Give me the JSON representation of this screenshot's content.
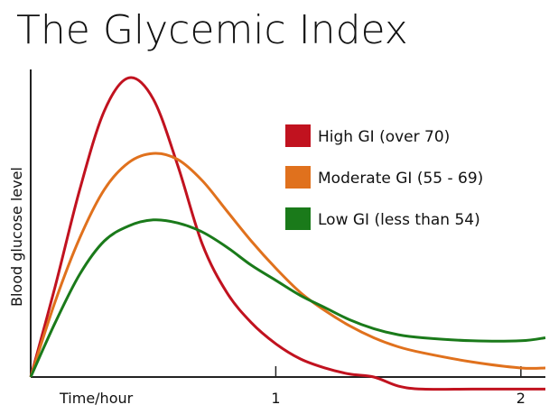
{
  "chart_data": {
    "type": "line",
    "title": "The Glycemic Index",
    "xlabel": "Time/hour",
    "ylabel": "Blood glucose level",
    "x_ticks": [
      1,
      2
    ],
    "xlim": [
      0,
      2.1
    ],
    "ylim": [
      0,
      100
    ],
    "legend_position": "top-right",
    "series": [
      {
        "name": "High GI (over 70)",
        "color": "#c1121f",
        "points": [
          [
            0,
            0
          ],
          [
            0.1,
            30
          ],
          [
            0.2,
            62
          ],
          [
            0.3,
            88
          ],
          [
            0.4,
            99
          ],
          [
            0.5,
            92
          ],
          [
            0.6,
            70
          ],
          [
            0.7,
            44
          ],
          [
            0.8,
            28
          ],
          [
            0.9,
            18
          ],
          [
            1.0,
            11
          ],
          [
            1.1,
            6
          ],
          [
            1.2,
            3
          ],
          [
            1.3,
            1
          ],
          [
            1.4,
            0
          ],
          [
            1.5,
            -3
          ],
          [
            1.6,
            -4
          ],
          [
            1.8,
            -4
          ],
          [
            2.0,
            -4
          ],
          [
            2.1,
            -4
          ]
        ]
      },
      {
        "name": "Moderate GI (55 - 69)",
        "color": "#e0711d",
        "points": [
          [
            0,
            0
          ],
          [
            0.1,
            25
          ],
          [
            0.2,
            46
          ],
          [
            0.3,
            62
          ],
          [
            0.4,
            71
          ],
          [
            0.5,
            74
          ],
          [
            0.6,
            72
          ],
          [
            0.7,
            65
          ],
          [
            0.8,
            55
          ],
          [
            0.9,
            45
          ],
          [
            1.0,
            36
          ],
          [
            1.1,
            28
          ],
          [
            1.2,
            22
          ],
          [
            1.3,
            17
          ],
          [
            1.4,
            13
          ],
          [
            1.5,
            10
          ],
          [
            1.6,
            8
          ],
          [
            1.8,
            5
          ],
          [
            2.0,
            3
          ],
          [
            2.1,
            3
          ]
        ]
      },
      {
        "name": "Low GI (less than 54)",
        "color": "#1a7a1a",
        "points": [
          [
            0,
            0
          ],
          [
            0.1,
            18
          ],
          [
            0.2,
            34
          ],
          [
            0.3,
            45
          ],
          [
            0.4,
            50
          ],
          [
            0.5,
            52
          ],
          [
            0.6,
            51
          ],
          [
            0.7,
            48
          ],
          [
            0.8,
            43
          ],
          [
            0.9,
            37
          ],
          [
            1.0,
            32
          ],
          [
            1.1,
            27
          ],
          [
            1.2,
            23
          ],
          [
            1.3,
            19
          ],
          [
            1.4,
            16
          ],
          [
            1.5,
            14
          ],
          [
            1.6,
            13
          ],
          [
            1.8,
            12
          ],
          [
            2.0,
            12
          ],
          [
            2.1,
            13
          ]
        ]
      }
    ]
  }
}
